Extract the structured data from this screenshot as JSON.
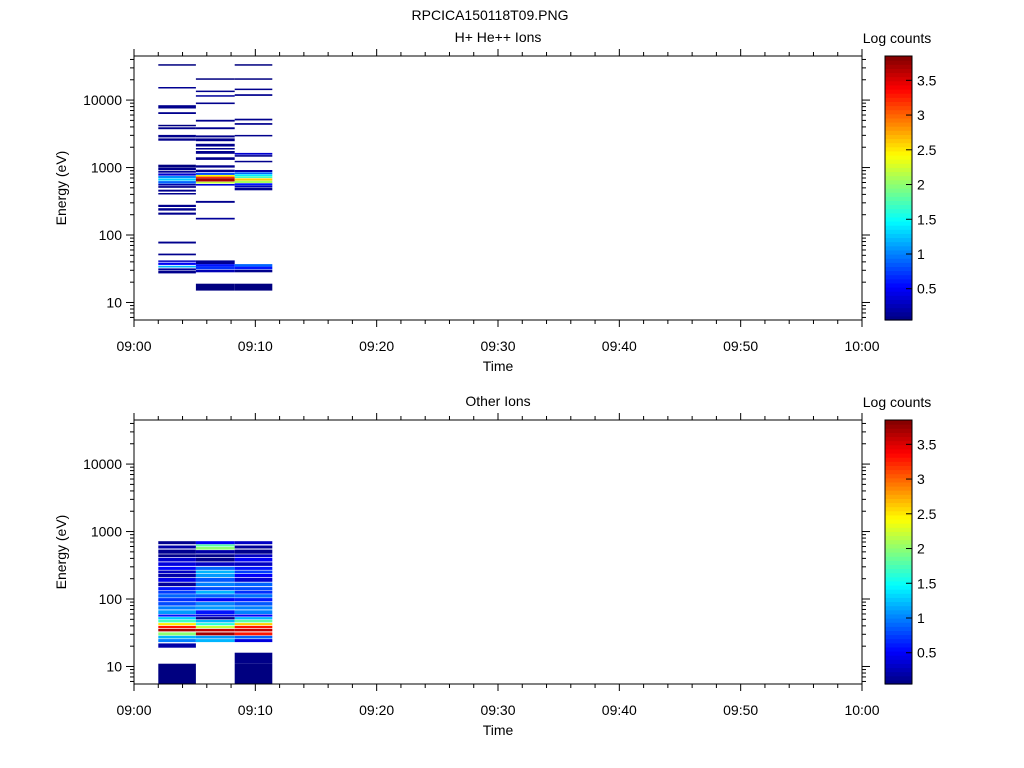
{
  "figure_title": "RPCICA150118T09.PNG",
  "colorbar": {
    "label": "Log counts",
    "ticks": [
      "0.5",
      "1",
      "1.5",
      "2",
      "2.5",
      "3",
      "3.5"
    ],
    "tick_values": [
      0.5,
      1,
      1.5,
      2,
      2.5,
      3,
      3.5
    ],
    "range": [
      0.05,
      3.85
    ],
    "colormap": "jet"
  },
  "chart_data": [
    {
      "type": "heatmap",
      "title": "H+ He++ Ions",
      "xlabel": "Time",
      "ylabel": "Energy (eV)",
      "xticks": [
        "09:00",
        "09:10",
        "09:20",
        "09:30",
        "09:40",
        "09:50",
        "10:00"
      ],
      "xlim_minutes": [
        0,
        60
      ],
      "yscale": "log",
      "ylim": [
        5.5,
        45000
      ],
      "yticks": [
        "10",
        "100",
        "1000",
        "10000"
      ],
      "ytick_values": [
        10,
        100,
        1000,
        10000
      ],
      "columns": [
        {
          "t0": 2.0,
          "t1": 5.1,
          "bins": [
            [
              33000,
              34000,
              0.05
            ],
            [
              15000,
              15600,
              0.12
            ],
            [
              7500,
              8400,
              0.1
            ],
            [
              6200,
              6600,
              0.1
            ],
            [
              4100,
              4300,
              0.05
            ],
            [
              3700,
              3950,
              0.1
            ],
            [
              2800,
              3050,
              0.1
            ],
            [
              2500,
              2700,
              0.1
            ],
            [
              1000,
              1100,
              0.05
            ],
            [
              910,
              990,
              0.1
            ],
            [
              840,
              890,
              0.15
            ],
            [
              760,
              820,
              0.35
            ],
            [
              700,
              750,
              1.05
            ],
            [
              640,
              690,
              1.3
            ],
            [
              580,
              630,
              0.9
            ],
            [
              540,
              575,
              0.2
            ],
            [
              500,
              530,
              0.1
            ],
            [
              440,
              470,
              0.1
            ],
            [
              400,
              420,
              0.1
            ],
            [
              260,
              280,
              0.1
            ],
            [
              230,
              250,
              0.1
            ],
            [
              200,
              215,
              0.1
            ],
            [
              75,
              80,
              0.1
            ],
            [
              50,
              53,
              0.1
            ],
            [
              40,
              42,
              0.3
            ],
            [
              36,
              39,
              0.5
            ],
            [
              33,
              35,
              1.2
            ],
            [
              30,
              32,
              0.15
            ],
            [
              27,
              29.5,
              0.1
            ]
          ]
        },
        {
          "t0": 5.1,
          "t1": 8.3,
          "bins": [
            [
              20000,
              21000,
              0.05
            ],
            [
              13200,
              13800,
              0.1
            ],
            [
              11200,
              11800,
              0.15
            ],
            [
              8700,
              9200,
              0.1
            ],
            [
              4800,
              5100,
              0.1
            ],
            [
              3700,
              3950,
              0.1
            ],
            [
              2800,
              3000,
              0.1
            ],
            [
              2450,
              2700,
              0.1
            ],
            [
              2050,
              2250,
              0.1
            ],
            [
              1850,
              1950,
              0.1
            ],
            [
              1600,
              1760,
              0.1
            ],
            [
              1300,
              1420,
              0.1
            ],
            [
              1000,
              1080,
              0.1
            ],
            [
              860,
              930,
              0.1
            ],
            [
              780,
              840,
              0.8
            ],
            [
              740,
              775,
              2.4
            ],
            [
              700,
              735,
              3.2
            ],
            [
              620,
              695,
              3.7
            ],
            [
              580,
              615,
              2.2
            ],
            [
              540,
              570,
              0.4
            ],
            [
              300,
              320,
              0.1
            ],
            [
              170,
              180,
              0.15
            ],
            [
              37,
              42,
              0.12
            ],
            [
              34,
              37,
              0.6
            ],
            [
              31,
              34,
              0.7
            ],
            [
              28,
              30.5,
              0.25
            ],
            [
              15,
              19,
              0.05
            ]
          ]
        },
        {
          "t0": 8.3,
          "t1": 11.4,
          "bins": [
            [
              33000,
              34000,
              0.05
            ],
            [
              20000,
              21000,
              0.05
            ],
            [
              14200,
              14800,
              0.1
            ],
            [
              11500,
              12200,
              0.1
            ],
            [
              5000,
              5300,
              0.1
            ],
            [
              4300,
              4550,
              0.1
            ],
            [
              2900,
              3050,
              0.1
            ],
            [
              1550,
              1650,
              0.35
            ],
            [
              1450,
              1530,
              0.1
            ],
            [
              1200,
              1260,
              0.1
            ],
            [
              860,
              920,
              0.2
            ],
            [
              800,
              850,
              0.9
            ],
            [
              750,
              795,
              1.4
            ],
            [
              700,
              745,
              1.7
            ],
            [
              640,
              690,
              2.6
            ],
            [
              590,
              635,
              2.1
            ],
            [
              550,
              585,
              0.6
            ],
            [
              510,
              545,
              0.3
            ],
            [
              460,
              505,
              0.12
            ],
            [
              34,
              37,
              0.9
            ],
            [
              31,
              34,
              0.6
            ],
            [
              28,
              30.5,
              0.1
            ],
            [
              15,
              19,
              0.05
            ]
          ]
        }
      ]
    },
    {
      "type": "heatmap",
      "title": "Other Ions",
      "xlabel": "Time",
      "ylabel": "Energy (eV)",
      "xticks": [
        "09:00",
        "09:10",
        "09:20",
        "09:30",
        "09:40",
        "09:50",
        "10:00"
      ],
      "xlim_minutes": [
        0,
        60
      ],
      "yscale": "log",
      "ylim": [
        5.5,
        45000
      ],
      "yticks": [
        "10",
        "100",
        "1000",
        "10000"
      ],
      "ytick_values": [
        10,
        100,
        1000,
        10000
      ],
      "columns": [
        {
          "t0": 2.0,
          "t1": 5.1,
          "bins": [
            [
              650,
              720,
              0.1
            ],
            [
              560,
              620,
              0.2
            ],
            [
              470,
              540,
              0.12
            ],
            [
              420,
              460,
              0.1
            ],
            [
              360,
              410,
              0.35
            ],
            [
              310,
              350,
              0.4
            ],
            [
              270,
              300,
              0.55
            ],
            [
              240,
              265,
              0.3
            ],
            [
              210,
              235,
              0.2
            ],
            [
              180,
              205,
              0.45
            ],
            [
              155,
              175,
              0.15
            ],
            [
              135,
              150,
              0.6
            ],
            [
              120,
              133,
              0.75
            ],
            [
              105,
              118,
              0.9
            ],
            [
              92,
              103,
              0.7
            ],
            [
              80,
              90,
              0.8
            ],
            [
              70,
              78,
              1.0
            ],
            [
              60,
              68,
              1.1
            ],
            [
              55,
              59,
              0.6
            ],
            [
              50,
              54,
              1.3
            ],
            [
              45,
              49,
              1.7
            ],
            [
              41,
              44,
              2.5
            ],
            [
              37,
              40,
              3.3
            ],
            [
              33,
              36,
              3.7
            ],
            [
              29,
              32,
              2.0
            ],
            [
              26,
              28.5,
              1.2
            ],
            [
              23,
              25.5,
              1.0
            ],
            [
              19,
              22,
              0.2
            ],
            [
              8,
              11,
              0.05
            ],
            [
              5.5,
              8,
              0.05
            ]
          ]
        },
        {
          "t0": 5.1,
          "t1": 8.3,
          "bins": [
            [
              650,
              720,
              0.5
            ],
            [
              600,
              645,
              1.8
            ],
            [
              540,
              590,
              2.0
            ],
            [
              470,
              530,
              0.2
            ],
            [
              420,
              460,
              0.1
            ],
            [
              360,
              410,
              0.1
            ],
            [
              310,
              350,
              0.3
            ],
            [
              270,
              300,
              0.9
            ],
            [
              240,
              265,
              1.2
            ],
            [
              210,
              235,
              1.1
            ],
            [
              180,
              205,
              0.85
            ],
            [
              155,
              175,
              1.0
            ],
            [
              135,
              150,
              0.8
            ],
            [
              120,
              133,
              1.2
            ],
            [
              105,
              118,
              0.9
            ],
            [
              92,
              103,
              0.5
            ],
            [
              80,
              90,
              1.0
            ],
            [
              70,
              78,
              1.1
            ],
            [
              60,
              68,
              0.6
            ],
            [
              55,
              59,
              0.4
            ],
            [
              50,
              54,
              0.1
            ],
            [
              45,
              49,
              1.2
            ],
            [
              41,
              44,
              1.6
            ],
            [
              37,
              40,
              2.2
            ],
            [
              33,
              36,
              3.6
            ],
            [
              29,
              32,
              3.7
            ],
            [
              26,
              28.5,
              1.1
            ],
            [
              23,
              25.5,
              1.2
            ]
          ]
        },
        {
          "t0": 8.3,
          "t1": 11.4,
          "bins": [
            [
              650,
              720,
              0.3
            ],
            [
              560,
              620,
              0.15
            ],
            [
              470,
              540,
              0.1
            ],
            [
              420,
              460,
              0.3
            ],
            [
              360,
              410,
              0.5
            ],
            [
              310,
              350,
              0.3
            ],
            [
              270,
              300,
              0.6
            ],
            [
              240,
              265,
              0.75
            ],
            [
              210,
              235,
              0.5
            ],
            [
              180,
              205,
              0.35
            ],
            [
              155,
              175,
              0.9
            ],
            [
              135,
              150,
              0.8
            ],
            [
              120,
              133,
              0.7
            ],
            [
              105,
              118,
              0.95
            ],
            [
              92,
              103,
              0.6
            ],
            [
              80,
              90,
              0.85
            ],
            [
              70,
              78,
              1.0
            ],
            [
              60,
              68,
              1.0
            ],
            [
              55,
              59,
              0.5
            ],
            [
              50,
              54,
              1.2
            ],
            [
              45,
              49,
              1.8
            ],
            [
              41,
              44,
              2.6
            ],
            [
              37,
              40,
              3.3
            ],
            [
              33,
              36,
              3.6
            ],
            [
              29,
              32,
              3.3
            ],
            [
              26,
              28.5,
              0.9
            ],
            [
              23,
              25.5,
              0.4
            ],
            [
              11,
              16,
              0.08
            ],
            [
              5.5,
              11,
              0.05
            ]
          ]
        }
      ]
    }
  ]
}
